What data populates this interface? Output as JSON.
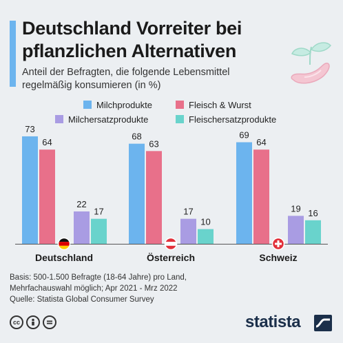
{
  "header": {
    "title_line1": "Deutschland Vorreiter bei",
    "title_line2": "pflanzlichen Alternativen",
    "subtitle_line1": "Anteil der Befragten, die folgende Lebensmittel",
    "subtitle_line2": "regelmäßig konsumieren (in %)"
  },
  "colors": {
    "background": "#eceff2",
    "accent": "#6cb4ee",
    "milch": "#6cb4ee",
    "fleisch": "#e8708a",
    "milchersatz": "#a99ce3",
    "fleischersatz": "#69d3cc"
  },
  "chart_data": {
    "type": "bar",
    "categories": [
      "Deutschland",
      "Österreich",
      "Schweiz"
    ],
    "flags": [
      "flag-germany-icon",
      "flag-austria-icon",
      "flag-switzerland-icon"
    ],
    "series": [
      {
        "name": "Milchprodukte",
        "values": [
          73,
          68,
          69
        ]
      },
      {
        "name": "Fleisch & Wurst",
        "values": [
          64,
          63,
          64
        ]
      },
      {
        "name": "Milchersatzprodukte",
        "values": [
          22,
          17,
          19
        ]
      },
      {
        "name": "Fleischersatzprodukte",
        "values": [
          17,
          10,
          16
        ]
      }
    ],
    "ylim": [
      0,
      80
    ],
    "grid": false,
    "legend_position": "top"
  },
  "footer": {
    "note_line1": "Basis: 500-1.500 Befragte (18-64 Jahre) pro Land,",
    "note_line2": "Mehrfachauswahl möglich; Apr 2021 - Mrz 2022",
    "note_line3": "Quelle: Statista Global Consumer Survey",
    "brand": "statista",
    "license_icons": [
      "cc-icon",
      "by-icon",
      "nd-icon"
    ]
  }
}
